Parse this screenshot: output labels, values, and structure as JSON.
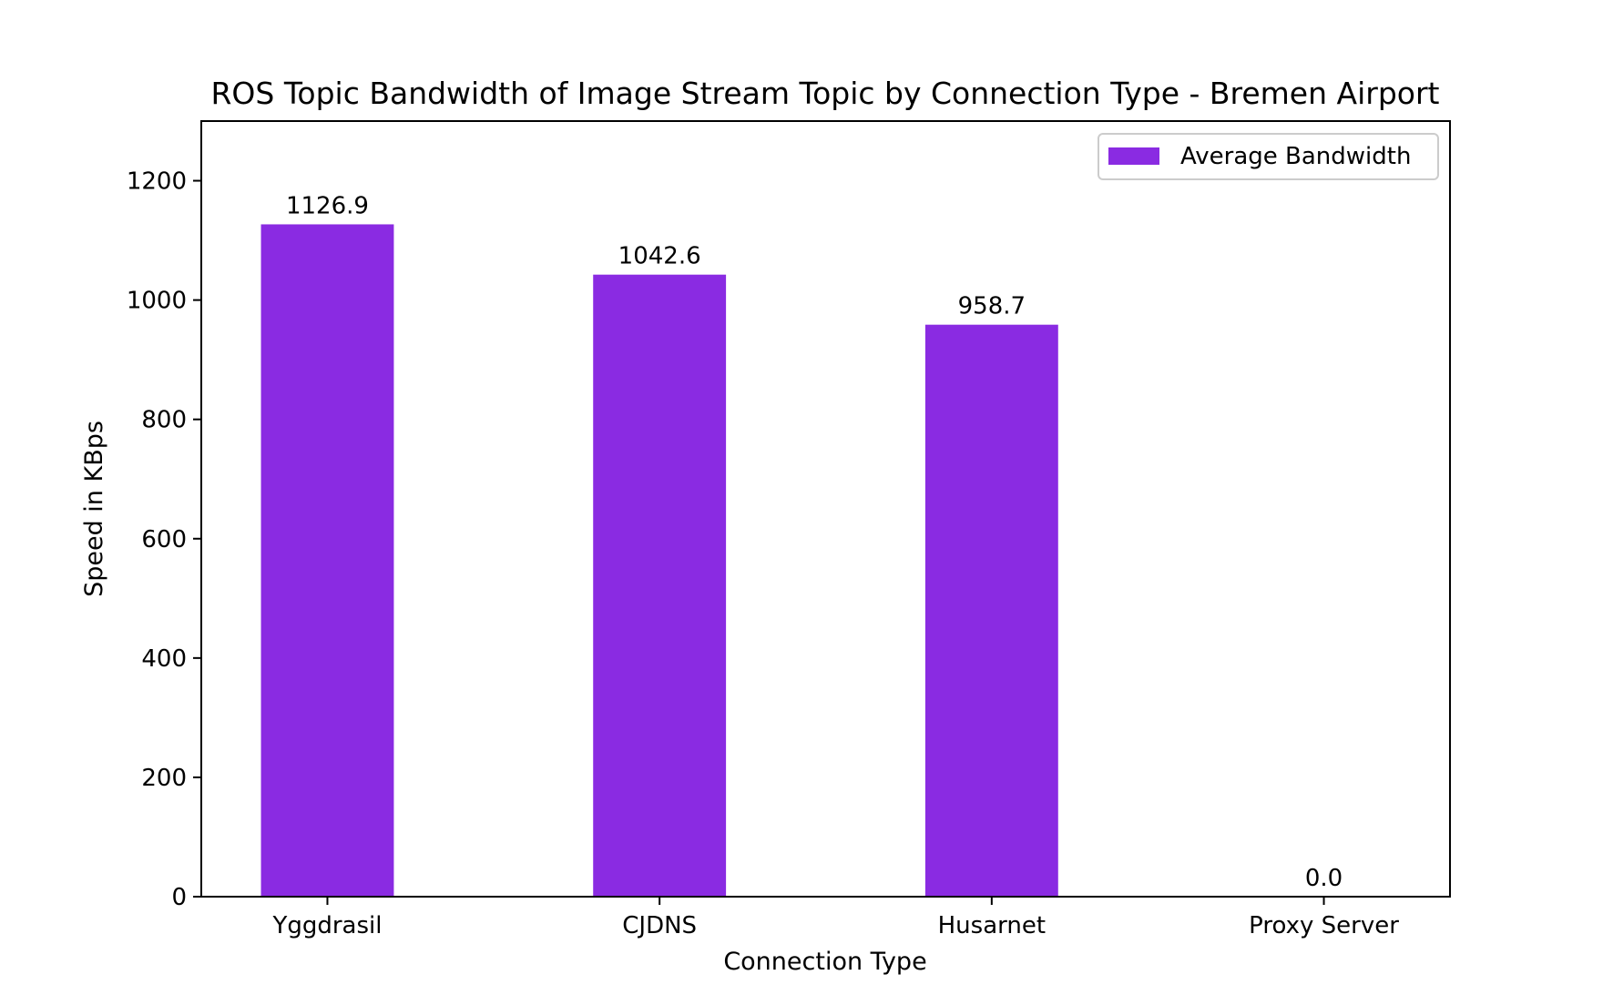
{
  "chart_data": {
    "type": "bar",
    "title": "ROS Topic Bandwidth of Image Stream Topic by Connection Type - Bremen Airport",
    "xlabel": "Connection Type",
    "ylabel": "Speed in KBps",
    "categories": [
      "Yggdrasil",
      "CJDNS",
      "Husarnet",
      "Proxy Server"
    ],
    "series": [
      {
        "name": "Average Bandwidth",
        "values": [
          1126.9,
          1042.6,
          958.7,
          0.0
        ],
        "value_labels": [
          "1126.9",
          "1042.6",
          "958.7",
          "0.0"
        ],
        "color": "#8a2be2"
      }
    ],
    "ylim": [
      0,
      1300
    ],
    "yticks": [
      0,
      200,
      400,
      600,
      800,
      1000,
      1200
    ],
    "ytick_labels": [
      "0",
      "200",
      "400",
      "600",
      "800",
      "1000",
      "1200"
    ],
    "grid": false,
    "legend_position": "top-right"
  }
}
